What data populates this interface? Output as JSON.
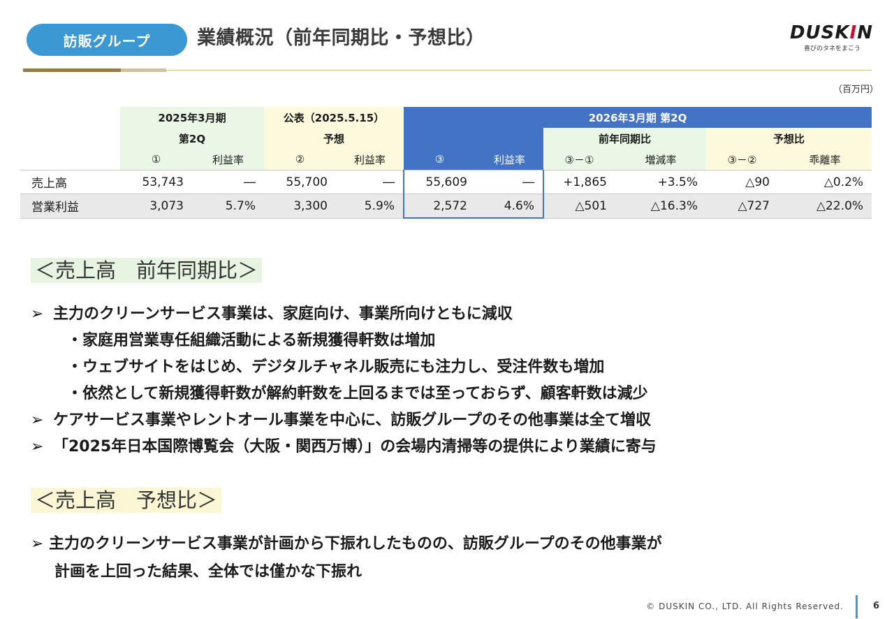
{
  "header": {
    "section_label": "訪販グループ",
    "title": "業績概況（前年同期比・予想比）",
    "logo_text_main": "DUSK",
    "logo_text_bang": "I",
    "logo_text_end": "N",
    "logo_tagline": "喜びのタネをまこう"
  },
  "unit": "（百万円）",
  "table": {
    "groups": {
      "fy2025": "2025年3月期",
      "forecast": "公表（2025.5.15）",
      "fy2026": "2026年3月期 第2Q"
    },
    "subgroups": {
      "q2": "第2Q",
      "forecast": "予想",
      "yoy": "前年同期比",
      "vs_forecast": "予想比"
    },
    "columns": [
      "①",
      "利益率",
      "②",
      "利益率",
      "③",
      "利益率",
      "③－①",
      "増減率",
      "③－②",
      "乖離率"
    ],
    "rows": [
      {
        "label": "売上高",
        "cells": [
          "53,743",
          "―",
          "55,700",
          "―",
          "55,609",
          "―",
          "+1,865",
          "+3.5%",
          "△90",
          "△0.2%"
        ]
      },
      {
        "label": "営業利益",
        "cells": [
          "3,073",
          "5.7%",
          "3,300",
          "5.9%",
          "2,572",
          "4.6%",
          "△501",
          "△16.3%",
          "△727",
          "△22.0%"
        ]
      }
    ]
  },
  "section1": {
    "heading": "＜売上高　前年同期比＞",
    "bullets": [
      "主力のクリーンサービス事業は、家庭向け、事業所向けともに減収",
      "・家庭用営業専任組織活動による新規獲得軒数は増加",
      "・ウェブサイトをはじめ、デジタルチャネル販売にも注力し、受注件数も増加",
      "・依然として新規獲得軒数が解約軒数を上回るまでは至っておらず、顧客軒数は減少",
      "ケアサービス事業やレントオール事業を中心に、訪販グループのその他事業は全て増収",
      "「2025年日本国際博覧会（大阪・関西万博）」の会場内清掃等の提供により業績に寄与"
    ]
  },
  "section2": {
    "heading": "＜売上高　予想比＞",
    "bullets": [
      "主力のクリーンサービス事業が計画から下振れしたものの、訪販グループのその他事業が",
      "計画を上回った結果、全体では僅かな下振れ"
    ]
  },
  "bullet_glyph": "➢",
  "footer": {
    "copyright": "© DUSKIN CO., LTD. All Rights Reserved.",
    "page": "6"
  }
}
